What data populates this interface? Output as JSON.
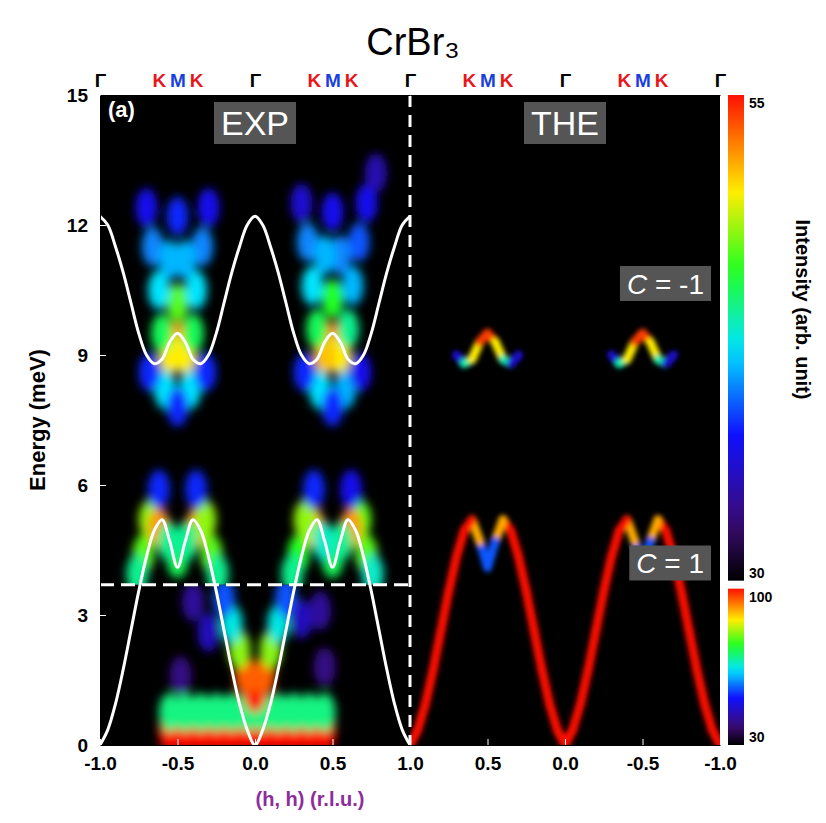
{
  "chart_data": {
    "type": "heatmap",
    "title": "CrBr₃",
    "y_label": "Energy (meV)",
    "x_label": "(h, h) (r.l.u.)",
    "ylim": [
      0,
      15
    ],
    "yticks": [
      0,
      3,
      6,
      9,
      12,
      15
    ],
    "colorbar_label": "Intensity (arb. unit)",
    "colorbars": [
      {
        "range": [
          30,
          55
        ],
        "ticks": [
          30,
          55
        ]
      },
      {
        "range": [
          30,
          100
        ],
        "ticks": [
          30,
          100
        ]
      }
    ],
    "panels": [
      {
        "label": "(a)",
        "name": "EXP",
        "xlim": [
          -1,
          1
        ],
        "xticks": [
          {
            "value": -1,
            "label": "-1.0"
          },
          {
            "value": -0.5,
            "label": "-0.5"
          },
          {
            "value": 0,
            "label": "0.0"
          },
          {
            "value": 0.5,
            "label": "0.5"
          },
          {
            "value": 1,
            "label": "1.0"
          }
        ],
        "top_axis": {
          "ticks": [
            {
              "value": -1,
              "label": "Γ"
            },
            {
              "value": -0.62,
              "label": "K"
            },
            {
              "value": -0.5,
              "label": "M"
            },
            {
              "value": -0.38,
              "label": "K"
            },
            {
              "value": 0,
              "label": "Γ"
            },
            {
              "value": 0.38,
              "label": "K"
            },
            {
              "value": 0.5,
              "label": "M"
            },
            {
              "value": 0.62,
              "label": "K"
            },
            {
              "value": 1,
              "label": "Γ"
            }
          ],
          "colors": [
            "#000000",
            "#e8161b",
            "#1a3fe0",
            "#e8161b",
            "#000000",
            "#e8161b",
            "#1a3fe0",
            "#e8161b",
            "#000000"
          ]
        },
        "map_boundary": 3.7,
        "cells": [
          {
            "colorbar": 0,
            "x": [
              -0.5,
              -0.55,
              -0.45,
              -0.5,
              -0.6,
              -0.4,
              -0.62,
              -0.38,
              -0.66,
              -0.34,
              -0.55,
              -0.45,
              -0.7,
              -0.3,
              -0.5,
              -0.58,
              -0.42,
              -0.5,
              -0.68,
              -0.32,
              0.5,
              0.55,
              0.45,
              0.5,
              0.6,
              0.4,
              0.63,
              0.37,
              0.67,
              0.34,
              0.55,
              0.45,
              0.72,
              0.3,
              0.5,
              0.58,
              0.42,
              0.5,
              0.68,
              0.32,
              0.78,
              -0.68,
              -0.62,
              -0.72,
              -0.38,
              -0.32,
              -0.28,
              -0.5,
              -0.56,
              -0.44,
              -0.76,
              -0.24,
              -0.62,
              -0.38,
              0.68,
              0.62,
              0.72,
              0.38,
              0.32,
              0.28,
              0.5,
              0.56,
              0.44,
              0.76,
              0.24,
              0.62,
              0.38
            ],
            "y": [
              9.3,
              9.0,
              9.0,
              10.2,
              9.5,
              9.5,
              10.5,
              10.5,
              11.5,
              11.5,
              11.2,
              11.2,
              12.4,
              12.4,
              12.2,
              8.2,
              8.2,
              7.8,
              8.6,
              8.6,
              9.3,
              9.0,
              9.0,
              10.3,
              9.6,
              9.6,
              10.6,
              10.6,
              11.6,
              11.6,
              11.3,
              11.3,
              12.5,
              12.5,
              12.3,
              8.2,
              8.2,
              7.8,
              8.6,
              8.6,
              13.2,
              5.2,
              5.0,
              4.4,
              5.0,
              5.2,
              4.4,
              4.3,
              4.7,
              4.7,
              3.95,
              3.95,
              5.9,
              5.9,
              5.2,
              5.0,
              4.4,
              5.0,
              5.2,
              4.4,
              4.3,
              4.7,
              4.7,
              3.95,
              3.95,
              5.9,
              5.9
            ],
            "intensity": [
              52,
              50,
              50,
              47,
              45,
              45,
              42,
              42,
              40,
              40,
              41,
              41,
              37,
              37,
              38,
              42,
              42,
              38,
              38,
              38,
              53,
              50,
              51,
              46,
              44,
              45,
              41,
              42,
              39,
              40,
              40,
              41,
              37,
              36,
              37,
              41,
              42,
              38,
              37,
              38,
              35,
              48,
              52,
              47,
              52,
              48,
              47,
              45,
              44,
              44,
              44,
              44,
              38,
              38,
              47,
              52,
              47,
              51,
              48,
              46,
              45,
              44,
              43,
              43,
              44,
              37,
              38
            ]
          },
          {
            "colorbar": 1,
            "x": [
              -0.55,
              -0.45,
              -0.35,
              -0.25,
              -0.15,
              -0.05,
              0.05,
              0.15,
              0.25,
              0.35,
              0.45,
              -0.55,
              -0.45,
              -0.35,
              -0.25,
              -0.15,
              -0.05,
              0.05,
              0.15,
              0.25,
              0.35,
              0.45,
              0,
              -0.06,
              0.06,
              -0.1,
              0.1,
              -0.15,
              0.15,
              -0.2,
              0.2,
              -0.3,
              0.3,
              -0.4,
              0.42,
              -0.48,
              0.45
            ],
            "y": [
              0.3,
              0.3,
              0.3,
              0.3,
              0.3,
              0.3,
              0.3,
              0.3,
              0.3,
              0.3,
              0.3,
              0.75,
              0.75,
              0.75,
              0.75,
              0.75,
              0.75,
              0.75,
              0.75,
              0.75,
              0.75,
              0.75,
              1.2,
              1.6,
              1.6,
              2.2,
              2.2,
              2.8,
              2.8,
              3.4,
              3.4,
              2.6,
              2.9,
              3.3,
              3.1,
              1.6,
              1.8
            ],
            "intensity": [
              100,
              100,
              100,
              100,
              100,
              100,
              100,
              100,
              100,
              100,
              100,
              70,
              70,
              70,
              70,
              70,
              70,
              70,
              70,
              70,
              70,
              70,
              100,
              95,
              95,
              80,
              80,
              65,
              65,
              55,
              55,
              45,
              45,
              42,
              42,
              40,
              40
            ]
          }
        ],
        "series": [
          {
            "color": "#ffffff",
            "x": [
              -1,
              -0.95,
              -0.9,
              -0.85,
              -0.8,
              -0.75,
              -0.7,
              -0.65,
              -0.6,
              -0.55,
              -0.5,
              -0.45,
              -0.4,
              -0.35,
              -0.3,
              -0.25,
              -0.2,
              -0.15,
              -0.1,
              -0.05,
              0,
              0.05,
              0.1,
              0.15,
              0.2,
              0.25,
              0.3,
              0.35,
              0.4,
              0.45,
              0.5,
              0.55,
              0.6,
              0.65,
              0.7,
              0.75,
              0.8,
              0.85,
              0.9,
              0.95,
              1
            ],
            "values": [
              0,
              0.35,
              0.95,
              1.75,
              2.65,
              3.55,
              4.35,
              4.95,
              5.2,
              4.7,
              4.1,
              4.7,
              5.2,
              4.95,
              4.35,
              3.55,
              2.65,
              1.75,
              0.95,
              0.35,
              0,
              0.35,
              0.95,
              1.75,
              2.65,
              3.55,
              4.35,
              4.95,
              5.2,
              4.7,
              4.1,
              4.7,
              5.2,
              4.95,
              4.35,
              3.55,
              2.65,
              1.75,
              0.95,
              0.35,
              0
            ]
          },
          {
            "color": "#ffffff",
            "x": [
              -1,
              -0.95,
              -0.9,
              -0.85,
              -0.8,
              -0.75,
              -0.7,
              -0.65,
              -0.6,
              -0.55,
              -0.5,
              -0.45,
              -0.4,
              -0.35,
              -0.3,
              -0.25,
              -0.2,
              -0.15,
              -0.1,
              -0.05,
              0,
              0.05,
              0.1,
              0.15,
              0.2,
              0.25,
              0.3,
              0.35,
              0.4,
              0.45,
              0.5,
              0.55,
              0.6,
              0.65,
              0.7,
              0.75,
              0.8,
              0.85,
              0.9,
              0.95,
              1
            ],
            "values": [
              12.2,
              12.0,
              11.5,
              10.9,
              10.2,
              9.5,
              9.0,
              8.8,
              8.9,
              9.3,
              9.5,
              9.3,
              8.9,
              8.8,
              9.0,
              9.5,
              10.2,
              10.9,
              11.5,
              12.0,
              12.2,
              12.0,
              11.5,
              10.9,
              10.2,
              9.5,
              9.0,
              8.8,
              8.9,
              9.3,
              9.5,
              9.3,
              8.9,
              8.8,
              9.0,
              9.5,
              10.2,
              10.9,
              11.5,
              12.0,
              12.2
            ]
          }
        ]
      },
      {
        "name": "THE",
        "xlim": [
          1,
          -1
        ],
        "xticks": [
          {
            "value": 0.5,
            "label": "0.5"
          },
          {
            "value": 0,
            "label": "0.0"
          },
          {
            "value": -0.5,
            "label": "-0.5"
          },
          {
            "value": -1,
            "label": "-1.0"
          }
        ],
        "top_axis": {
          "ticks": [
            {
              "value": 0.62,
              "label": "K"
            },
            {
              "value": 0.5,
              "label": "M"
            },
            {
              "value": 0.38,
              "label": "K"
            },
            {
              "value": 0,
              "label": "Γ"
            },
            {
              "value": -0.38,
              "label": "K"
            },
            {
              "value": -0.5,
              "label": "M"
            },
            {
              "value": -0.62,
              "label": "K"
            },
            {
              "value": -1,
              "label": "Γ"
            }
          ],
          "colors": [
            "#e8161b",
            "#1a3fe0",
            "#e8161b",
            "#000000",
            "#e8161b",
            "#1a3fe0",
            "#e8161b",
            "#000000"
          ]
        },
        "annotations": [
          "C = -1",
          "C = 1"
        ],
        "bands": [
          {
            "colorbar": 0,
            "x": [
              -1,
              -0.95,
              -0.9,
              -0.85,
              -0.8,
              -0.75,
              -0.7,
              -0.65,
              -0.6,
              -0.55,
              -0.5,
              -0.45,
              -0.4,
              -0.35,
              -0.3,
              -0.25,
              -0.2,
              -0.15,
              -0.1,
              -0.05,
              0,
              0.05,
              0.1,
              0.15,
              0.2,
              0.25,
              0.3,
              0.35,
              0.4,
              0.45,
              0.5,
              0.55,
              0.6,
              0.65,
              0.7,
              0.75,
              0.8,
              0.85,
              0.9,
              0.95,
              1
            ],
            "values": [
              0,
              0.35,
              0.95,
              1.75,
              2.65,
              3.55,
              4.35,
              4.95,
              5.2,
              4.7,
              4.1,
              4.7,
              5.2,
              4.95,
              4.35,
              3.55,
              2.65,
              1.75,
              0.95,
              0.35,
              0,
              0.35,
              0.95,
              1.75,
              2.65,
              3.55,
              4.35,
              4.95,
              5.2,
              4.7,
              4.1,
              4.7,
              5.2,
              4.95,
              4.35,
              3.55,
              2.65,
              1.75,
              0.95,
              0.35,
              0
            ],
            "intensity": [
              55,
              55,
              55,
              55,
              55,
              55,
              55,
              55,
              55,
              48,
              30,
              48,
              55,
              55,
              55,
              55,
              55,
              55,
              55,
              55,
              55,
              55,
              55,
              55,
              55,
              55,
              55,
              55,
              55,
              48,
              30,
              48,
              55,
              55,
              55,
              55,
              55,
              55,
              55,
              55,
              55
            ]
          },
          {
            "colorbar": 0,
            "x": [
              0.7,
              0.65,
              0.6,
              0.55,
              0.5,
              0.45,
              0.4,
              0.35,
              0.3
            ],
            "values": [
              9.0,
              8.8,
              8.9,
              9.3,
              9.5,
              9.3,
              8.9,
              8.8,
              9.0
            ],
            "intensity": [
              32,
              40,
              47,
              53,
              55,
              53,
              47,
              40,
              32
            ]
          },
          {
            "colorbar": 0,
            "x": [
              -0.3,
              -0.35,
              -0.4,
              -0.45,
              -0.5,
              -0.55,
              -0.6,
              -0.65,
              -0.7
            ],
            "values": [
              9.0,
              8.8,
              8.9,
              9.3,
              9.5,
              9.3,
              8.9,
              8.8,
              9.0
            ],
            "intensity": [
              32,
              40,
              47,
              53,
              55,
              53,
              47,
              40,
              32
            ]
          }
        ]
      }
    ]
  }
}
